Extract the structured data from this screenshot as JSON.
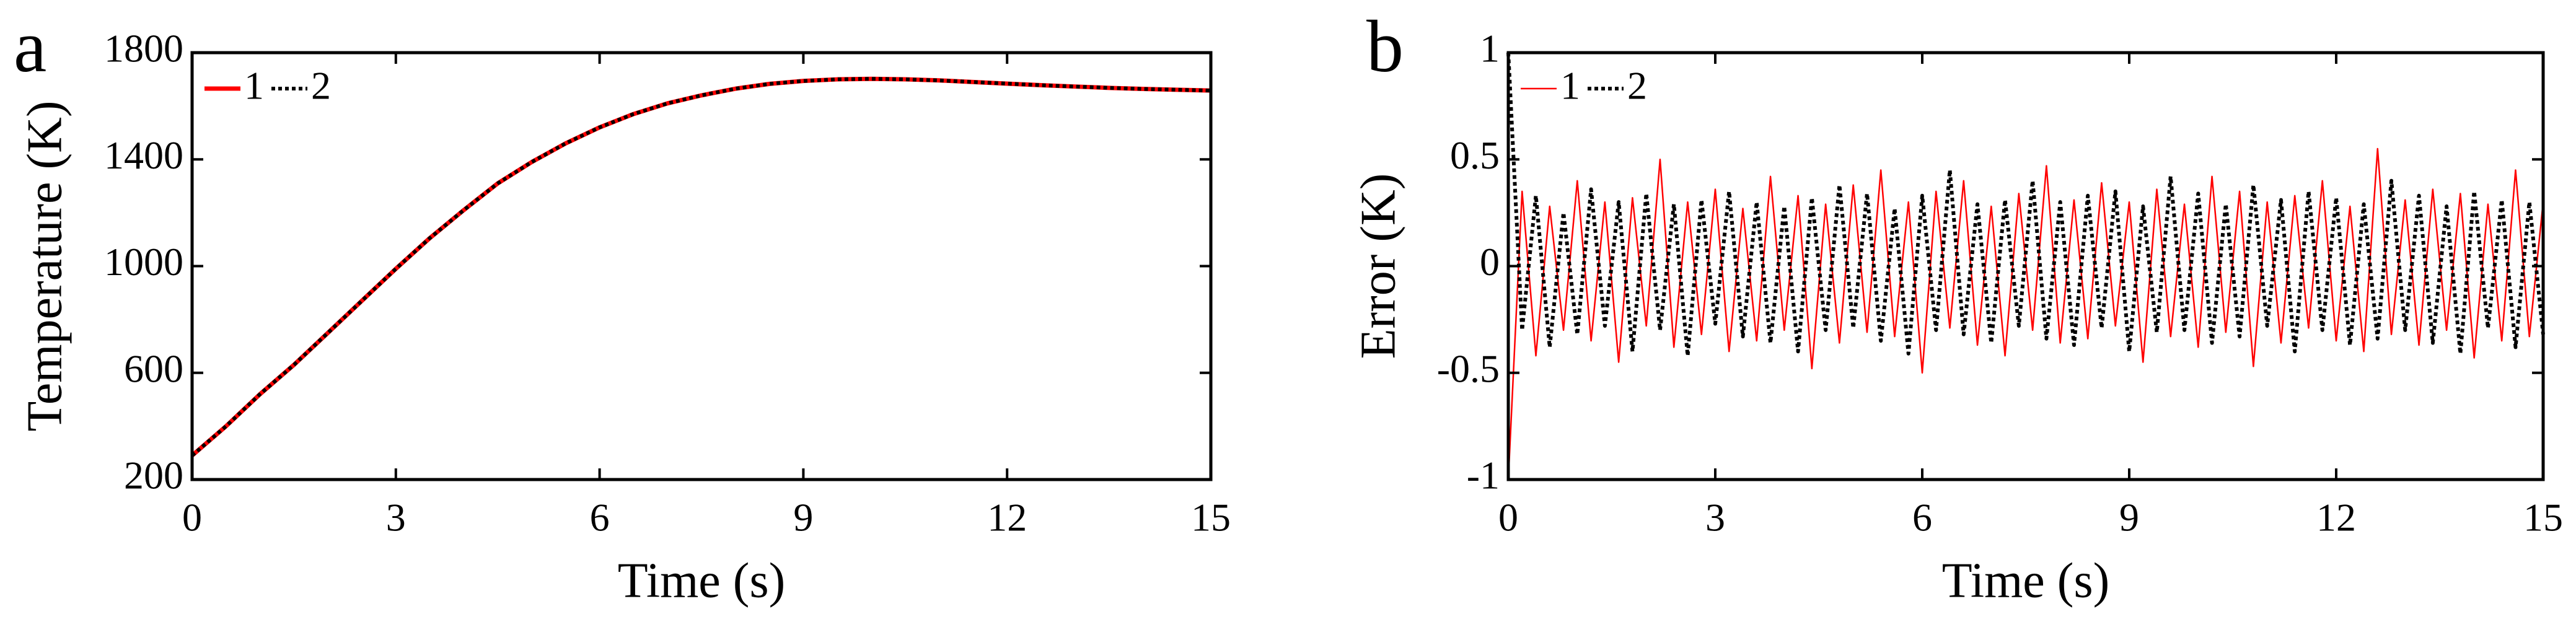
{
  "chart_data": [
    {
      "type": "line",
      "panel_label": "a",
      "xlabel": "Time (s)",
      "ylabel": "Temperature (K)",
      "legend": "upper left",
      "xlim": [
        0,
        15
      ],
      "xticks": [
        0,
        3,
        6,
        9,
        12,
        15
      ],
      "ylim": [
        200,
        1800
      ],
      "yticks": [
        200,
        600,
        1000,
        1400,
        1800
      ],
      "x": [
        0,
        0.5,
        1,
        1.5,
        2,
        2.5,
        3,
        3.5,
        4,
        4.5,
        5,
        5.5,
        6,
        6.5,
        7,
        7.5,
        8,
        8.5,
        9,
        9.5,
        10,
        10.5,
        11,
        11.5,
        12,
        12.5,
        13,
        13.5,
        14,
        14.5,
        15
      ],
      "series": [
        {
          "name": "1",
          "color": "#ff0000",
          "values": [
            290,
            400,
            520,
            630,
            750,
            870,
            990,
            1105,
            1210,
            1310,
            1390,
            1460,
            1520,
            1570,
            1610,
            1640,
            1665,
            1683,
            1694,
            1700,
            1702,
            1700,
            1696,
            1690,
            1684,
            1678,
            1673,
            1668,
            1664,
            1661,
            1658
          ]
        },
        {
          "name": "2",
          "color": "#000000",
          "values": [
            290,
            400,
            520,
            630,
            750,
            870,
            990,
            1105,
            1210,
            1310,
            1390,
            1460,
            1520,
            1570,
            1610,
            1640,
            1665,
            1683,
            1694,
            1700,
            1702,
            1700,
            1696,
            1690,
            1684,
            1678,
            1673,
            1668,
            1664,
            1661,
            1658
          ]
        }
      ]
    },
    {
      "type": "line",
      "panel_label": "b",
      "xlabel": "Time (s)",
      "ylabel": "Error (K)",
      "legend": "upper left",
      "xlim": [
        0,
        15
      ],
      "xticks": [
        0,
        3,
        6,
        9,
        12,
        15
      ],
      "ylim": [
        -1,
        1
      ],
      "yticks": [
        -1,
        -0.5,
        0,
        0.5,
        1
      ],
      "x": [
        0,
        0.2,
        0.4,
        0.6,
        0.8,
        1,
        1.2,
        1.4,
        1.6,
        1.8,
        2,
        2.2,
        2.4,
        2.6,
        2.8,
        3,
        3.2,
        3.4,
        3.6,
        3.8,
        4,
        4.2,
        4.4,
        4.6,
        4.8,
        5,
        5.2,
        5.4,
        5.6,
        5.8,
        6,
        6.2,
        6.4,
        6.6,
        6.8,
        7,
        7.2,
        7.4,
        7.6,
        7.8,
        8,
        8.2,
        8.4,
        8.6,
        8.8,
        9,
        9.2,
        9.4,
        9.6,
        9.8,
        10,
        10.2,
        10.4,
        10.6,
        10.8,
        11,
        11.2,
        11.4,
        11.6,
        11.8,
        12,
        12.2,
        12.4,
        12.6,
        12.8,
        13,
        13.2,
        13.4,
        13.6,
        13.8,
        14,
        14.2,
        14.4,
        14.6,
        14.8,
        15
      ],
      "series": [
        {
          "name": "1",
          "color": "#ff0000",
          "values": [
            -1,
            0.35,
            -0.42,
            0.28,
            -0.3,
            0.4,
            -0.35,
            0.3,
            -0.45,
            0.32,
            -0.28,
            0.5,
            -0.38,
            0.3,
            -0.32,
            0.36,
            -0.4,
            0.27,
            -0.35,
            0.42,
            -0.3,
            0.33,
            -0.48,
            0.29,
            -0.36,
            0.38,
            -0.31,
            0.45,
            -0.33,
            0.3,
            -0.5,
            0.35,
            -0.29,
            0.4,
            -0.37,
            0.28,
            -0.42,
            0.34,
            -0.3,
            0.47,
            -0.36,
            0.31,
            -0.34,
            0.39,
            -0.28,
            0.3,
            -0.45,
            0.36,
            -0.33,
            0.29,
            -0.38,
            0.42,
            -0.31,
            0.35,
            -0.47,
            0.3,
            -0.36,
            0.33,
            -0.29,
            0.4,
            -0.35,
            0.28,
            -0.4,
            0.55,
            -0.32,
            0.31,
            -0.37,
            0.36,
            -0.3,
            0.34,
            -0.43,
            0.29,
            -0.35,
            0.45,
            -0.33,
            0.3
          ]
        },
        {
          "name": "2",
          "color": "#000000",
          "values": [
            1,
            -0.3,
            0.33,
            -0.38,
            0.25,
            -0.32,
            0.36,
            -0.28,
            0.3,
            -0.4,
            0.34,
            -0.3,
            0.29,
            -0.42,
            0.31,
            -0.27,
            0.35,
            -0.33,
            0.3,
            -0.36,
            0.28,
            -0.4,
            0.32,
            -0.3,
            0.38,
            -0.29,
            0.34,
            -0.35,
            0.27,
            -0.41,
            0.33,
            -0.3,
            0.45,
            -0.32,
            0.29,
            -0.36,
            0.31,
            -0.28,
            0.4,
            -0.34,
            0.3,
            -0.37,
            0.33,
            -0.29,
            0.35,
            -0.4,
            0.28,
            -0.31,
            0.42,
            -0.3,
            0.34,
            -0.36,
            0.29,
            -0.33,
            0.38,
            -0.28,
            0.31,
            -0.4,
            0.35,
            -0.3,
            0.32,
            -0.37,
            0.29,
            -0.34,
            0.4,
            -0.3,
            0.33,
            -0.36,
            0.28,
            -0.41,
            0.35,
            -0.29,
            0.31,
            -0.38,
            0.3,
            -0.32
          ]
        }
      ]
    }
  ]
}
